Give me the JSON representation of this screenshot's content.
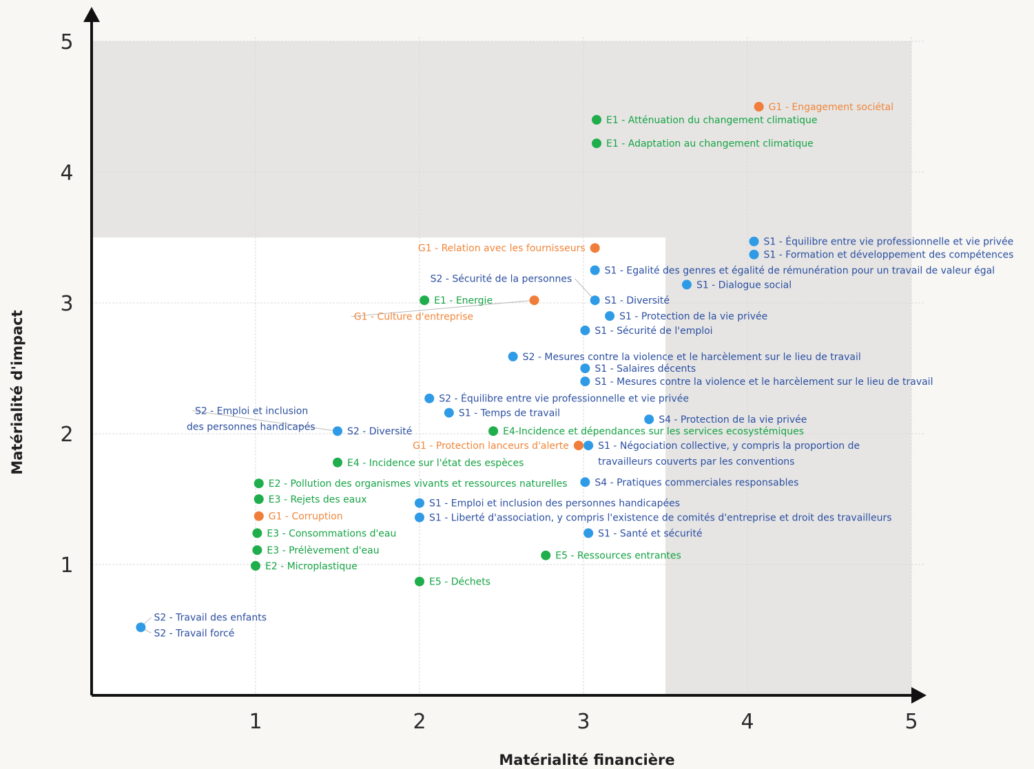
{
  "colors": {
    "environment": "#1fae4b",
    "social": "#2f9be6",
    "governance": "#f07d3a",
    "label_social": "#2b4fa0",
    "label_environment": "#16a344",
    "label_governance": "#f0863a",
    "zone": "#e6e5e4",
    "plot_bg": "#ffffff",
    "grid": "#d9d9d9",
    "axis": "#111111"
  },
  "chart_data": {
    "type": "scatter",
    "xlabel": "Matérialité financière",
    "ylabel": "Matérialité d'impact",
    "xlim": [
      0,
      5
    ],
    "ylim": [
      0,
      5
    ],
    "xticks": [
      "1",
      "2",
      "3",
      "4",
      "5"
    ],
    "yticks": [
      "1",
      "2",
      "3",
      "4",
      "5"
    ],
    "grid": true,
    "materiality_threshold": 3.5,
    "points": [
      {
        "x": 4.07,
        "y": 4.5,
        "cat": "governance",
        "labels": [
          "G1 - Engagement sociétal"
        ],
        "anchor": "right"
      },
      {
        "x": 3.08,
        "y": 4.4,
        "cat": "environment",
        "labels": [
          "E1 - Atténuation du changement climatique"
        ],
        "anchor": "right"
      },
      {
        "x": 3.08,
        "y": 4.22,
        "cat": "environment",
        "labels": [
          "E1 - Adaptation au changement climatique"
        ],
        "anchor": "right"
      },
      {
        "x": 4.04,
        "y": 3.47,
        "cat": "social",
        "labels": [
          "S1 - Équilibre entre vie professionnelle et vie privée"
        ],
        "anchor": "right"
      },
      {
        "x": 4.04,
        "y": 3.37,
        "cat": "social",
        "labels": [
          "S1 - Formation et développement des compétences"
        ],
        "anchor": "right"
      },
      {
        "x": 3.07,
        "y": 3.42,
        "cat": "governance",
        "labels": [
          "G1 - Relation avec les fournisseurs"
        ],
        "anchor": "left"
      },
      {
        "x": 3.07,
        "y": 3.25,
        "cat": "social",
        "labels": [
          "S1 - Egalité des genres et égalité de rémunération pour un travail de valeur égal"
        ],
        "anchor": "right"
      },
      {
        "x": 3.63,
        "y": 3.14,
        "cat": "social",
        "labels": [
          "S1 - Dialogue social"
        ],
        "anchor": "right"
      },
      {
        "x": 3.07,
        "y": 3.02,
        "cat": "social",
        "labels": [
          "S1 - Diversité"
        ],
        "anchor": "right"
      },
      {
        "x": 2.03,
        "y": 3.02,
        "cat": "environment",
        "labels": [
          "E1 - Energie"
        ],
        "anchor": "right"
      },
      {
        "x": 2.7,
        "y": 3.02,
        "cat": "governance",
        "labels": [],
        "anchor": "none"
      },
      {
        "x": 3.16,
        "y": 2.9,
        "cat": "social",
        "labels": [
          "S1 - Protection de la vie privée"
        ],
        "anchor": "right"
      },
      {
        "x": 3.01,
        "y": 2.79,
        "cat": "social",
        "labels": [
          "S1 - Sécurité de l'emploi"
        ],
        "anchor": "right"
      },
      {
        "x": 2.57,
        "y": 2.59,
        "cat": "social",
        "labels": [
          "S2 - Mesures contre la violence et le harcèlement sur le lieu de travail"
        ],
        "anchor": "right"
      },
      {
        "x": 3.01,
        "y": 2.5,
        "cat": "social",
        "labels": [
          "S1 - Salaires décents"
        ],
        "anchor": "right"
      },
      {
        "x": 3.01,
        "y": 2.4,
        "cat": "social",
        "labels": [
          "S1 - Mesures contre la violence et le harcèlement sur le lieu de travail"
        ],
        "anchor": "right"
      },
      {
        "x": 2.06,
        "y": 2.27,
        "cat": "social",
        "labels": [
          "S2 - Équilibre entre vie professionnelle et vie privée"
        ],
        "anchor": "right"
      },
      {
        "x": 2.18,
        "y": 2.16,
        "cat": "social",
        "labels": [
          "S1 - Temps de travail"
        ],
        "anchor": "right"
      },
      {
        "x": 3.4,
        "y": 2.11,
        "cat": "social",
        "labels": [
          "S4 - Protection de la vie privée"
        ],
        "anchor": "right"
      },
      {
        "x": 1.5,
        "y": 2.02,
        "cat": "social",
        "labels": [
          "S2 - Diversité"
        ],
        "anchor": "right"
      },
      {
        "x": 2.45,
        "y": 2.02,
        "cat": "environment",
        "labels": [
          "E4-Incidence et dépendances sur les services ecosystémiques"
        ],
        "anchor": "right"
      },
      {
        "x": 2.97,
        "y": 1.91,
        "cat": "governance",
        "labels": [
          "G1 - Protection lanceurs d'alerte"
        ],
        "anchor": "left"
      },
      {
        "x": 3.03,
        "y": 1.91,
        "cat": "social",
        "labels": [
          "S1 - Négociation collective, y compris la proportion de",
          "travailleurs couverts par les conventions"
        ],
        "anchor": "right"
      },
      {
        "x": 1.5,
        "y": 1.78,
        "cat": "environment",
        "labels": [
          "E4 - Incidence sur l'état des espèces"
        ],
        "anchor": "right"
      },
      {
        "x": 1.02,
        "y": 1.62,
        "cat": "environment",
        "labels": [
          "E2 - Pollution des organismes vivants et ressources naturelles"
        ],
        "anchor": "right"
      },
      {
        "x": 3.01,
        "y": 1.63,
        "cat": "social",
        "labels": [
          "S4 - Pratiques commerciales responsables"
        ],
        "anchor": "right"
      },
      {
        "x": 1.02,
        "y": 1.5,
        "cat": "environment",
        "labels": [
          "E3 - Rejets des eaux"
        ],
        "anchor": "right"
      },
      {
        "x": 2.0,
        "y": 1.47,
        "cat": "social",
        "labels": [
          "S1 - Emploi et inclusion des personnes handicapées"
        ],
        "anchor": "right"
      },
      {
        "x": 1.02,
        "y": 1.37,
        "cat": "governance",
        "labels": [
          "G1 - Corruption"
        ],
        "anchor": "right"
      },
      {
        "x": 2.0,
        "y": 1.36,
        "cat": "social",
        "labels": [
          "S1 - Liberté d'association, y compris l'existence de comités d'entreprise et droit des travailleurs"
        ],
        "anchor": "right"
      },
      {
        "x": 1.01,
        "y": 1.24,
        "cat": "environment",
        "labels": [
          "E3 - Consommations d'eau"
        ],
        "anchor": "right"
      },
      {
        "x": 3.03,
        "y": 1.24,
        "cat": "social",
        "labels": [
          "S1 - Santé et sécurité"
        ],
        "anchor": "right"
      },
      {
        "x": 1.01,
        "y": 1.11,
        "cat": "environment",
        "labels": [
          "E3 - Prélèvement d'eau"
        ],
        "anchor": "right"
      },
      {
        "x": 2.77,
        "y": 1.07,
        "cat": "environment",
        "labels": [
          "E5 - Ressources entrantes"
        ],
        "anchor": "right"
      },
      {
        "x": 1.0,
        "y": 0.99,
        "cat": "environment",
        "labels": [
          "E2 - Microplastique"
        ],
        "anchor": "right"
      },
      {
        "x": 2.0,
        "y": 0.87,
        "cat": "environment",
        "labels": [
          "E5 - Déchets"
        ],
        "anchor": "right"
      },
      {
        "x": 0.3,
        "y": 0.52,
        "cat": "social",
        "labels": [],
        "anchor": "none"
      }
    ],
    "callouts": [
      {
        "text": "G1 - Culture d'entreprise",
        "cat": "governance",
        "x": 1.6,
        "y": 2.87,
        "anchor": "start",
        "px": 2.7,
        "py": 3.02
      },
      {
        "text": "S2 - Sécurité de la personnes",
        "cat": "social",
        "x": 2.93,
        "y": 3.16,
        "anchor": "end",
        "px": 3.07,
        "py": 3.02
      },
      {
        "text": "S2 - Emploi et inclusion",
        "cat": "social",
        "x": 0.63,
        "y": 2.15,
        "anchor": "start",
        "px": 1.5,
        "py": 2.02
      },
      {
        "text": "des personnes handicapés",
        "cat": "social",
        "x": 0.58,
        "y": 2.03,
        "anchor": "start"
      },
      {
        "text": "S2 - Travail des enfants",
        "cat": "social",
        "x": 0.38,
        "y": 0.57,
        "anchor": "start",
        "px": 0.3,
        "py": 0.52
      },
      {
        "text": "S2 - Travail forcé",
        "cat": "social",
        "x": 0.38,
        "y": 0.45,
        "anchor": "start",
        "px": 0.3,
        "py": 0.52
      }
    ]
  }
}
